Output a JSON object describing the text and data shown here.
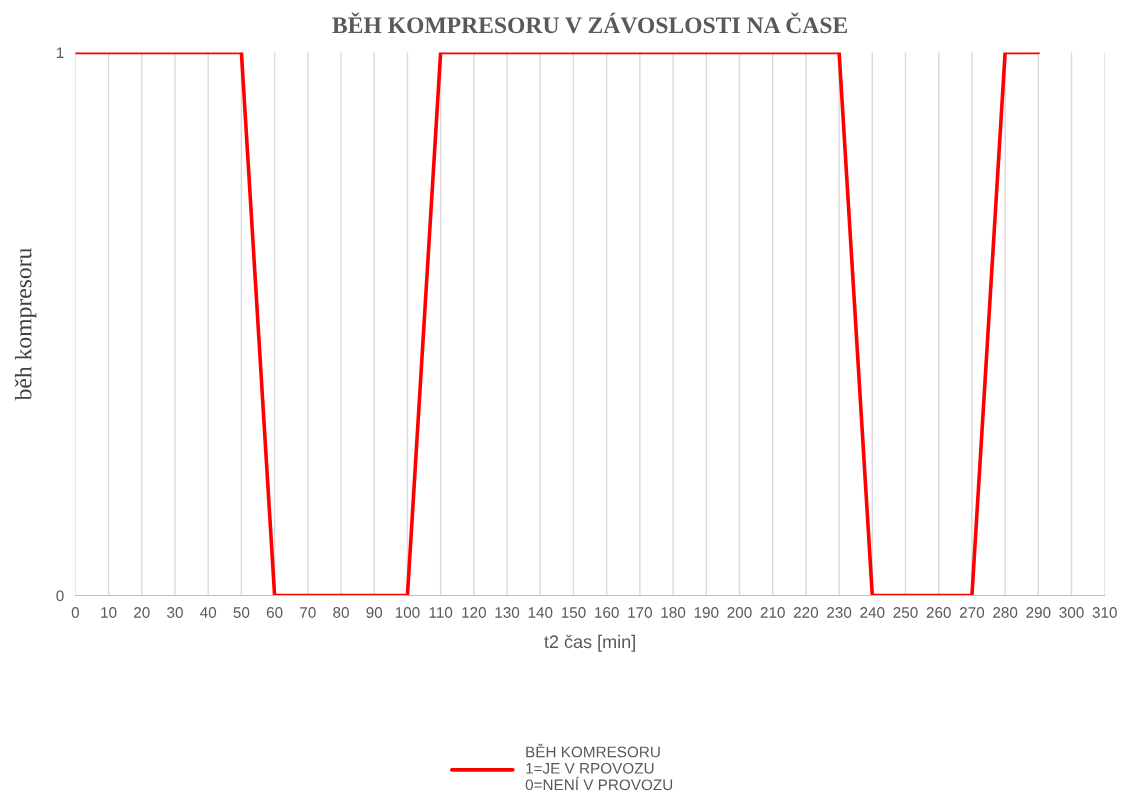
{
  "chart_data": {
    "type": "line",
    "title": "BĚH KOMPRESORU V ZÁVOSLOSTI NA ČASE",
    "xlabel": "t2 čas [min]",
    "ylabel": "běh kompresoru",
    "x": [
      0,
      10,
      20,
      30,
      40,
      50,
      60,
      70,
      80,
      90,
      100,
      110,
      120,
      130,
      140,
      150,
      160,
      170,
      180,
      190,
      200,
      210,
      220,
      230,
      240,
      250,
      260,
      270,
      280,
      290
    ],
    "series": [
      {
        "name": "BĚH KOMRESORU\n1=JE V RPOVOZU\n0=NENÍ V PROVOZU",
        "color": "#ff0000",
        "values": [
          1,
          1,
          1,
          1,
          1,
          1,
          0,
          0,
          0,
          0,
          0,
          1,
          1,
          1,
          1,
          1,
          1,
          1,
          1,
          1,
          1,
          1,
          1,
          1,
          0,
          0,
          0,
          0,
          1,
          1
        ]
      }
    ],
    "xlim": [
      0,
      310
    ],
    "xticks": [
      0,
      10,
      20,
      30,
      40,
      50,
      60,
      70,
      80,
      90,
      100,
      110,
      120,
      130,
      140,
      150,
      160,
      170,
      180,
      190,
      200,
      210,
      220,
      230,
      240,
      250,
      260,
      270,
      280,
      290,
      300,
      310
    ],
    "ylim": [
      0,
      1
    ],
    "yticks": [
      0,
      1
    ],
    "grid": "x",
    "legend": "bottom",
    "marker": "none",
    "line_style": "solid"
  }
}
